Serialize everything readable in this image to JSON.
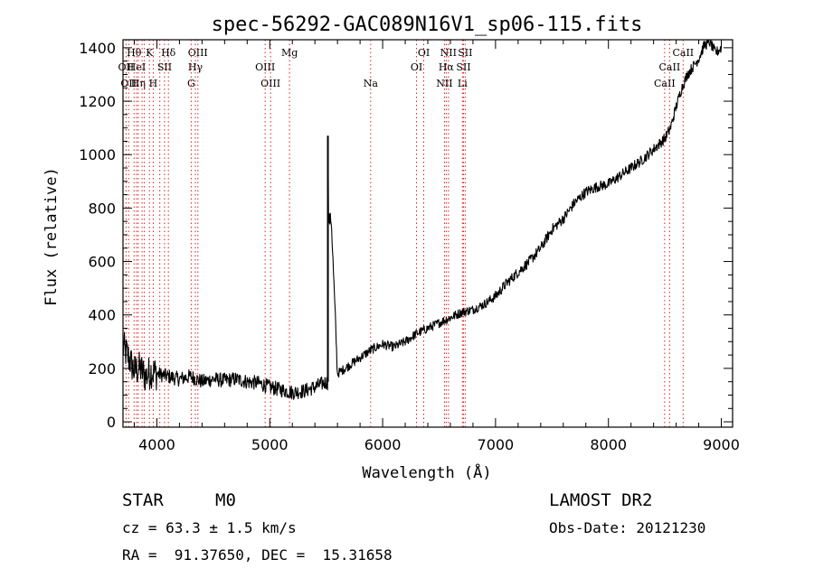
{
  "chart_data": {
    "type": "line",
    "title": "spec-56292-GAC089N16V1_sp06-115.fits",
    "xlabel": "Wavelength (Å)",
    "ylabel": "Flux (relative)",
    "xlim": [
      3700,
      9100
    ],
    "ylim": [
      -20,
      1430
    ],
    "xticks": [
      4000,
      5000,
      6000,
      7000,
      8000,
      9000
    ],
    "yticks": [
      0,
      200,
      400,
      600,
      800,
      1000,
      1200,
      1400
    ],
    "grid": false,
    "legend": "none",
    "series": [
      {
        "color": "#000000",
        "x": [
          3700,
          3750,
          3800,
          3850,
          3900,
          3950,
          4000,
          4100,
          4200,
          4300,
          4400,
          4500,
          4600,
          4700,
          4800,
          4900,
          5000,
          5100,
          5200,
          5300,
          5400,
          5500,
          5515,
          5600,
          5700,
          5800,
          5900,
          6000,
          6100,
          6200,
          6300,
          6400,
          6500,
          6600,
          6700,
          6800,
          6900,
          7000,
          7100,
          7200,
          7300,
          7400,
          7500,
          7600,
          7700,
          7800,
          7900,
          8000,
          8100,
          8200,
          8300,
          8400,
          8500,
          8550,
          8600,
          8650,
          8700,
          8800,
          8850,
          8900,
          8950,
          9000
        ],
        "y": [
          280,
          240,
          190,
          200,
          170,
          190,
          180,
          170,
          160,
          170,
          150,
          160,
          155,
          160,
          150,
          145,
          130,
          120,
          110,
          115,
          130,
          150,
          1070,
          180,
          210,
          240,
          270,
          290,
          280,
          300,
          330,
          350,
          370,
          390,
          410,
          420,
          440,
          470,
          520,
          560,
          600,
          650,
          720,
          760,
          820,
          860,
          880,
          890,
          920,
          950,
          980,
          1020,
          1060,
          1100,
          1180,
          1250,
          1300,
          1360,
          1410,
          1420,
          1380,
          1400
        ]
      }
    ],
    "lines": [
      {
        "x": 3727,
        "label": "OII",
        "row": 2
      },
      {
        "x": 3750,
        "label": "OII",
        "row": 3
      },
      {
        "x": 3798,
        "label": "Hθ",
        "row": 1
      },
      {
        "x": 3820,
        "label": "HeI",
        "row": 2
      },
      {
        "x": 3835,
        "label": "Hη",
        "row": 3
      },
      {
        "x": 3869,
        "label": "",
        "row": 0
      },
      {
        "x": 3889,
        "label": "",
        "row": 0
      },
      {
        "x": 3934,
        "label": "K",
        "row": 1
      },
      {
        "x": 3968,
        "label": "H",
        "row": 3
      },
      {
        "x": 4026,
        "label": "",
        "row": 0
      },
      {
        "x": 4068,
        "label": "SII",
        "row": 2
      },
      {
        "x": 4102,
        "label": "Hδ",
        "row": 1
      },
      {
        "x": 4304,
        "label": "G",
        "row": 3
      },
      {
        "x": 4341,
        "label": "Hγ",
        "row": 2
      },
      {
        "x": 4363,
        "label": "OIII",
        "row": 1
      },
      {
        "x": 4959,
        "label": "OIII",
        "row": 2
      },
      {
        "x": 5007,
        "label": "OIII",
        "row": 3
      },
      {
        "x": 5175,
        "label": "Mg",
        "row": 1
      },
      {
        "x": 5894,
        "label": "Na",
        "row": 3
      },
      {
        "x": 6300,
        "label": "OI",
        "row": 2
      },
      {
        "x": 6364,
        "label": "OI",
        "row": 1
      },
      {
        "x": 6548,
        "label": "NII",
        "row": 3
      },
      {
        "x": 6563,
        "label": "Hα",
        "row": 2
      },
      {
        "x": 6583,
        "label": "NII",
        "row": 1
      },
      {
        "x": 6707,
        "label": "Li",
        "row": 3
      },
      {
        "x": 6716,
        "label": "SII",
        "row": 2
      },
      {
        "x": 6731,
        "label": "SII",
        "row": 1
      },
      {
        "x": 8498,
        "label": "CaII",
        "row": 3
      },
      {
        "x": 8542,
        "label": "CaII",
        "row": 2
      },
      {
        "x": 8662,
        "label": "CaII",
        "row": 1
      }
    ]
  },
  "info": {
    "class": "STAR",
    "subclass": "M0",
    "survey": "LAMOST DR2",
    "cz": "cz = 63.3 ± 1.5 km/s",
    "obs_date": "Obs-Date: 20121230",
    "radec": "RA =  91.37650, DEC =  15.31658"
  }
}
